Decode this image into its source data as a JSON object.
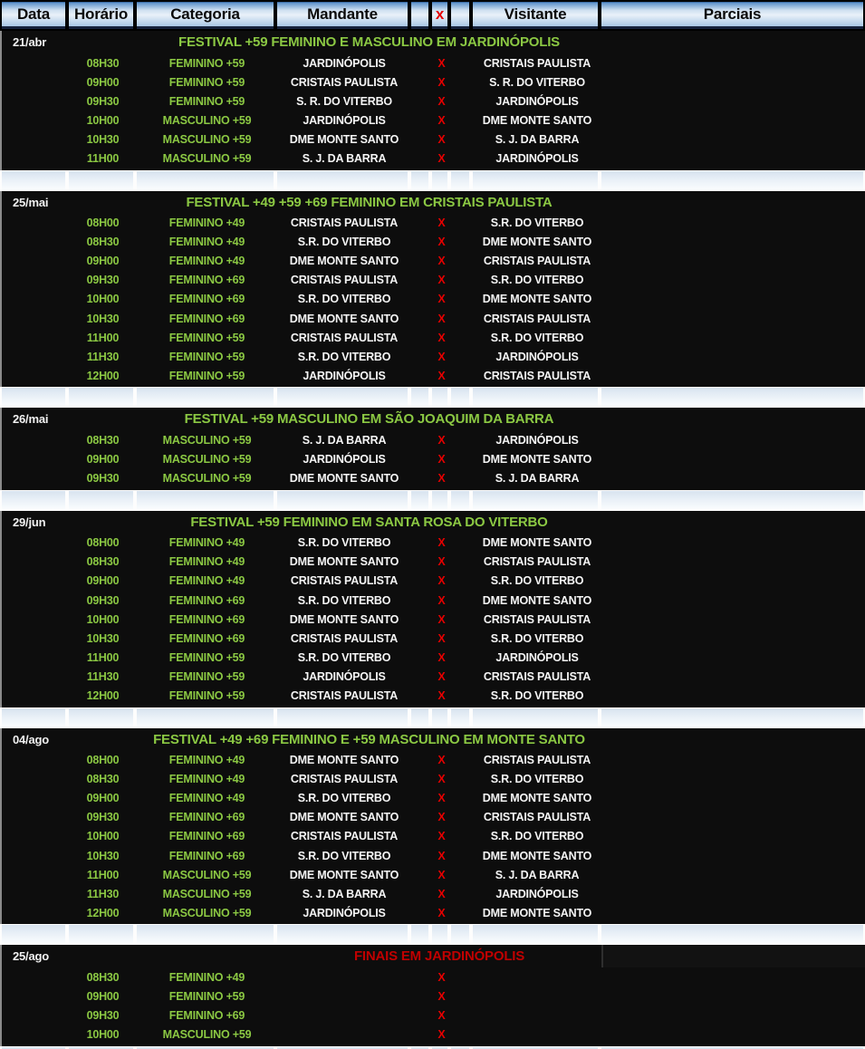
{
  "colors": {
    "green": "#8bc843",
    "red": "#e60000",
    "dark_red": "#c00000",
    "header_top": "#5d92cb",
    "header_mid": "#e9f1f9",
    "header_bottom": "#a9c7e5",
    "sep_top": "#d7e3ef",
    "sep_bottom": "#fbfdfe"
  },
  "header": {
    "columns": [
      "Data",
      "Horário",
      "Categoria",
      "Mandante",
      "",
      "x",
      "",
      "Visitante",
      "Parciais"
    ]
  },
  "sections": [
    {
      "date": "21/abr",
      "title": "FESTIVAL +59 FEMININO E MASCULINO EM JARDINÓPOLIS",
      "finals": false,
      "matches": [
        {
          "time": "08H30",
          "category": "FEMININO +59",
          "home": "JARDINÓPOLIS",
          "x": "X",
          "away": "CRISTAIS PAULISTA",
          "parciais": ""
        },
        {
          "time": "09H00",
          "category": "FEMININO +59",
          "home": "CRISTAIS PAULISTA",
          "x": "X",
          "away": "S. R. DO VITERBO",
          "parciais": ""
        },
        {
          "time": "09H30",
          "category": "FEMININO +59",
          "home": "S. R. DO VITERBO",
          "x": "X",
          "away": "JARDINÓPOLIS",
          "parciais": ""
        },
        {
          "time": "10H00",
          "category": "MASCULINO +59",
          "home": "JARDINÓPOLIS",
          "x": "X",
          "away": "DME MONTE SANTO",
          "parciais": ""
        },
        {
          "time": "10H30",
          "category": "MASCULINO +59",
          "home": "DME MONTE SANTO",
          "x": "X",
          "away": "S. J. DA BARRA",
          "parciais": ""
        },
        {
          "time": "11H00",
          "category": "MASCULINO +59",
          "home": "S. J. DA BARRA",
          "x": "X",
          "away": "JARDINÓPOLIS",
          "parciais": ""
        }
      ]
    },
    {
      "date": "25/mai",
      "title": "FESTIVAL +49 +59 +69 FEMININO EM CRISTAIS PAULISTA",
      "finals": false,
      "matches": [
        {
          "time": "08H00",
          "category": "FEMININO +49",
          "home": "CRISTAIS PAULISTA",
          "x": "X",
          "away": "S.R. DO VITERBO",
          "parciais": ""
        },
        {
          "time": "08H30",
          "category": "FEMININO +49",
          "home": "S.R. DO VITERBO",
          "x": "X",
          "away": "DME MONTE SANTO",
          "parciais": ""
        },
        {
          "time": "09H00",
          "category": "FEMININO +49",
          "home": "DME MONTE SANTO",
          "x": "X",
          "away": "CRISTAIS PAULISTA",
          "parciais": ""
        },
        {
          "time": "09H30",
          "category": "FEMININO +69",
          "home": "CRISTAIS PAULISTA",
          "x": "X",
          "away": "S.R. DO VITERBO",
          "parciais": ""
        },
        {
          "time": "10H00",
          "category": "FEMININO +69",
          "home": "S.R. DO VITERBO",
          "x": "X",
          "away": "DME MONTE SANTO",
          "parciais": ""
        },
        {
          "time": "10H30",
          "category": "FEMININO +69",
          "home": "DME MONTE SANTO",
          "x": "X",
          "away": "CRISTAIS PAULISTA",
          "parciais": ""
        },
        {
          "time": "11H00",
          "category": "FEMININO +59",
          "home": "CRISTAIS PAULISTA",
          "x": "X",
          "away": "S.R. DO VITERBO",
          "parciais": ""
        },
        {
          "time": "11H30",
          "category": "FEMININO +59",
          "home": "S.R. DO VITERBO",
          "x": "X",
          "away": "JARDINÓPOLIS",
          "parciais": ""
        },
        {
          "time": "12H00",
          "category": "FEMININO +59",
          "home": "JARDINÓPOLIS",
          "x": "X",
          "away": "CRISTAIS PAULISTA",
          "parciais": ""
        }
      ]
    },
    {
      "date": "26/mai",
      "title": "FESTIVAL +59 MASCULINO EM SÃO JOAQUIM DA BARRA",
      "finals": false,
      "matches": [
        {
          "time": "08H30",
          "category": "MASCULINO +59",
          "home": "S. J. DA BARRA",
          "x": "X",
          "away": "JARDINÓPOLIS",
          "parciais": ""
        },
        {
          "time": "09H00",
          "category": "MASCULINO +59",
          "home": "JARDINÓPOLIS",
          "x": "X",
          "away": "DME MONTE SANTO",
          "parciais": ""
        },
        {
          "time": "09H30",
          "category": "MASCULINO +59",
          "home": "DME MONTE SANTO",
          "x": "X",
          "away": "S. J. DA BARRA",
          "parciais": ""
        }
      ]
    },
    {
      "date": "29/jun",
      "title": "FESTIVAL +59 FEMININO EM SANTA ROSA DO VITERBO",
      "finals": false,
      "matches": [
        {
          "time": "08H00",
          "category": "FEMININO +49",
          "home": "S.R. DO VITERBO",
          "x": "X",
          "away": "DME MONTE SANTO",
          "parciais": ""
        },
        {
          "time": "08H30",
          "category": "FEMININO +49",
          "home": "DME MONTE SANTO",
          "x": "X",
          "away": "CRISTAIS PAULISTA",
          "parciais": ""
        },
        {
          "time": "09H00",
          "category": "FEMININO +49",
          "home": "CRISTAIS PAULISTA",
          "x": "X",
          "away": "S.R. DO VITERBO",
          "parciais": ""
        },
        {
          "time": "09H30",
          "category": "FEMININO +69",
          "home": "S.R. DO VITERBO",
          "x": "X",
          "away": "DME MONTE SANTO",
          "parciais": ""
        },
        {
          "time": "10H00",
          "category": "FEMININO +69",
          "home": "DME MONTE SANTO",
          "x": "X",
          "away": "CRISTAIS PAULISTA",
          "parciais": ""
        },
        {
          "time": "10H30",
          "category": "FEMININO +69",
          "home": "CRISTAIS PAULISTA",
          "x": "X",
          "away": "S.R. DO VITERBO",
          "parciais": ""
        },
        {
          "time": "11H00",
          "category": "FEMININO +59",
          "home": "S.R. DO VITERBO",
          "x": "X",
          "away": "JARDINÓPOLIS",
          "parciais": ""
        },
        {
          "time": "11H30",
          "category": "FEMININO +59",
          "home": "JARDINÓPOLIS",
          "x": "X",
          "away": "CRISTAIS PAULISTA",
          "parciais": ""
        },
        {
          "time": "12H00",
          "category": "FEMININO +59",
          "home": "CRISTAIS PAULISTA",
          "x": "X",
          "away": "S.R. DO VITERBO",
          "parciais": ""
        }
      ]
    },
    {
      "date": "04/ago",
      "title": "FESTIVAL +49 +69 FEMININO E +59 MASCULINO EM MONTE SANTO",
      "finals": false,
      "matches": [
        {
          "time": "08H00",
          "category": "FEMININO +49",
          "home": "DME MONTE SANTO",
          "x": "X",
          "away": "CRISTAIS PAULISTA",
          "parciais": ""
        },
        {
          "time": "08H30",
          "category": "FEMININO +49",
          "home": "CRISTAIS PAULISTA",
          "x": "X",
          "away": "S.R. DO VITERBO",
          "parciais": ""
        },
        {
          "time": "09H00",
          "category": "FEMININO +49",
          "home": "S.R. DO VITERBO",
          "x": "X",
          "away": "DME MONTE SANTO",
          "parciais": ""
        },
        {
          "time": "09H30",
          "category": "FEMININO +69",
          "home": "DME MONTE SANTO",
          "x": "X",
          "away": "CRISTAIS PAULISTA",
          "parciais": ""
        },
        {
          "time": "10H00",
          "category": "FEMININO +69",
          "home": "CRISTAIS PAULISTA",
          "x": "X",
          "away": "S.R. DO VITERBO",
          "parciais": ""
        },
        {
          "time": "10H30",
          "category": "FEMININO +69",
          "home": "S.R. DO VITERBO",
          "x": "X",
          "away": "DME MONTE SANTO",
          "parciais": ""
        },
        {
          "time": "11H00",
          "category": "MASCULINO +59",
          "home": "DME MONTE SANTO",
          "x": "X",
          "away": "S. J. DA BARRA",
          "parciais": ""
        },
        {
          "time": "11H30",
          "category": "MASCULINO +59",
          "home": "S. J. DA BARRA",
          "x": "X",
          "away": "JARDINÓPOLIS",
          "parciais": ""
        },
        {
          "time": "12H00",
          "category": "MASCULINO +59",
          "home": "JARDINÓPOLIS",
          "x": "X",
          "away": "DME MONTE SANTO",
          "parciais": ""
        }
      ]
    },
    {
      "date": "25/ago",
      "title": "FINAIS EM JARDINÓPOLIS",
      "finals": true,
      "matches": [
        {
          "time": "08H30",
          "category": "FEMININO +49",
          "home": "",
          "x": "X",
          "away": "",
          "parciais": ""
        },
        {
          "time": "09H00",
          "category": "FEMININO +59",
          "home": "",
          "x": "X",
          "away": "",
          "parciais": ""
        },
        {
          "time": "09H30",
          "category": "FEMININO +69",
          "home": "",
          "x": "X",
          "away": "",
          "parciais": ""
        },
        {
          "time": "10H00",
          "category": "MASCULINO +59",
          "home": "",
          "x": "X",
          "away": "",
          "parciais": ""
        }
      ]
    }
  ]
}
